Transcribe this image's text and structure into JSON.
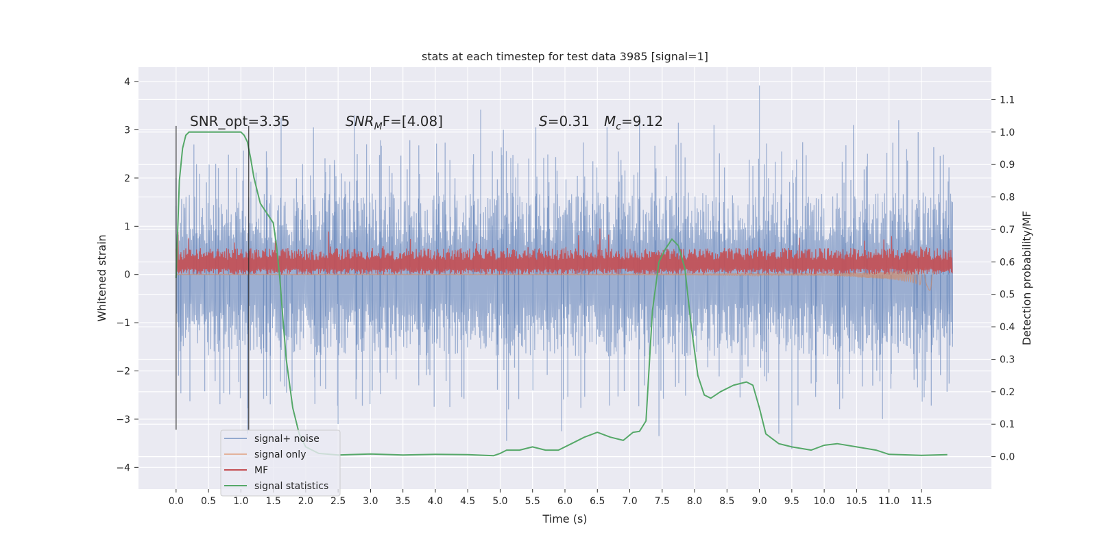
{
  "chart_data": {
    "type": "line",
    "title": "stats at each timestep for test data 3985 [signal=1]",
    "xlabel": "Time (s)",
    "ylabel_left": "Whitened strain",
    "ylabel_right": "Detection probability/MF",
    "xlim": [
      -0.58,
      12.58
    ],
    "ylim_left": [
      -4.45,
      4.3
    ],
    "ylim_right": [
      -0.1,
      1.2
    ],
    "x_ticks": [
      0.0,
      0.5,
      1.0,
      1.5,
      2.0,
      2.5,
      3.0,
      3.5,
      4.0,
      4.5,
      5.0,
      5.5,
      6.0,
      6.5,
      7.0,
      7.5,
      8.0,
      8.5,
      9.0,
      9.5,
      10.0,
      10.5,
      11.0,
      11.5
    ],
    "x_tick_labels": [
      "0.0",
      "0.5",
      "1.0",
      "1.5",
      "2.0",
      "2.5",
      "3.0",
      "3.5",
      "4.0",
      "4.5",
      "5.0",
      "5.5",
      "6.0",
      "6.5",
      "7.0",
      "7.5",
      "8.0",
      "8.5",
      "9.0",
      "9.5",
      "10.0",
      "10.5",
      "11.0",
      "11.5"
    ],
    "y_left_ticks": [
      -4,
      -3,
      -2,
      -1,
      0,
      1,
      2,
      3,
      4
    ],
    "y_left_tick_labels": [
      "−4",
      "−3",
      "−2",
      "−1",
      "0",
      "1",
      "2",
      "3",
      "4"
    ],
    "y_right_ticks": [
      0.0,
      0.1,
      0.2,
      0.3,
      0.4,
      0.5,
      0.6,
      0.7,
      0.8,
      0.9,
      1.0,
      1.1
    ],
    "y_right_tick_labels": [
      "0.0",
      "0.1",
      "0.2",
      "0.3",
      "0.4",
      "0.5",
      "0.6",
      "0.7",
      "0.8",
      "0.9",
      "1.0",
      "1.1"
    ],
    "grid": true,
    "legend_position": "lower-left",
    "annotations": {
      "snr_opt": "SNR_opt=3.35",
      "snr_mf_base": "SNR",
      "snr_mf_sub": "M",
      "snr_mf_tail": "F=[4.08]",
      "s_label": "S",
      "s_value": "=0.31",
      "mc_label": "M",
      "mc_sub": "c",
      "mc_value": "=9.12"
    },
    "window_markers": [
      0.0,
      1.12
    ],
    "series": [
      {
        "name": "signal+ noise",
        "color": "#4c72b0",
        "axis": "left",
        "kind": "noise_band",
        "x_range": [
          0.0,
          11.98
        ],
        "typical_range": [
          -1.7,
          1.7
        ],
        "max": 3.92,
        "min": -3.6,
        "peaks": [
          [
            0.0,
            2.0
          ],
          [
            1.62,
            3.25
          ],
          [
            2.12,
            3.05
          ],
          [
            2.75,
            3.3
          ],
          [
            4.7,
            3.42
          ],
          [
            5.05,
            3.0
          ],
          [
            5.55,
            3.05
          ],
          [
            6.65,
            3.05
          ],
          [
            7.15,
            3.3
          ],
          [
            7.75,
            3.15
          ],
          [
            8.3,
            3.1
          ],
          [
            9.0,
            3.92
          ],
          [
            10.45,
            3.1
          ],
          [
            11.15,
            3.2
          ],
          [
            11.45,
            2.95
          ],
          [
            11.98,
            1.5
          ]
        ],
        "troughs": [
          [
            1.1,
            -3.3
          ],
          [
            2.5,
            -3.1
          ],
          [
            5.1,
            -3.45
          ],
          [
            5.95,
            -3.25
          ],
          [
            7.45,
            -3.35
          ],
          [
            9.3,
            -3.3
          ],
          [
            9.5,
            -3.62
          ],
          [
            10.9,
            -3.0
          ],
          [
            11.98,
            -1.5
          ]
        ]
      },
      {
        "name": "signal only",
        "color": "#dd8452",
        "axis": "left",
        "kind": "chirp",
        "x": [
          0.0,
          8.0,
          9.0,
          10.0,
          10.5,
          11.0,
          11.3,
          11.5,
          11.6,
          11.65,
          11.7
        ],
        "amplitude": [
          0.005,
          0.01,
          0.015,
          0.03,
          0.05,
          0.08,
          0.12,
          0.18,
          0.25,
          0.4,
          0.0
        ]
      },
      {
        "name": "MF",
        "color": "#c44e52",
        "axis": "left",
        "kind": "positive_noise",
        "x_range": [
          0.0,
          11.98
        ],
        "typical_range": [
          0.0,
          0.55
        ],
        "max": 1.0
      },
      {
        "name": "signal statistics",
        "color": "#55a868",
        "axis": "right",
        "kind": "line",
        "x": [
          0.0,
          0.05,
          0.1,
          0.15,
          0.2,
          0.3,
          0.5,
          0.7,
          0.9,
          1.0,
          1.05,
          1.1,
          1.15,
          1.2,
          1.3,
          1.4,
          1.5,
          1.55,
          1.6,
          1.65,
          1.7,
          1.8,
          1.9,
          2.0,
          2.2,
          2.5,
          3.0,
          3.5,
          4.0,
          4.5,
          4.9,
          5.0,
          5.1,
          5.3,
          5.5,
          5.7,
          5.9,
          6.1,
          6.3,
          6.5,
          6.7,
          6.9,
          7.05,
          7.15,
          7.25,
          7.35,
          7.45,
          7.55,
          7.65,
          7.75,
          7.85,
          7.95,
          8.05,
          8.15,
          8.25,
          8.4,
          8.6,
          8.8,
          8.9,
          9.0,
          9.1,
          9.3,
          9.5,
          9.8,
          10.0,
          10.2,
          10.5,
          10.8,
          11.0,
          11.5,
          11.9
        ],
        "y": [
          0.55,
          0.85,
          0.95,
          0.99,
          1.0,
          1.0,
          1.0,
          1.0,
          1.0,
          1.0,
          0.99,
          0.97,
          0.92,
          0.86,
          0.78,
          0.75,
          0.72,
          0.65,
          0.55,
          0.42,
          0.3,
          0.15,
          0.07,
          0.03,
          0.01,
          0.005,
          0.008,
          0.005,
          0.007,
          0.006,
          0.003,
          0.01,
          0.02,
          0.02,
          0.03,
          0.02,
          0.02,
          0.04,
          0.06,
          0.075,
          0.06,
          0.05,
          0.075,
          0.078,
          0.11,
          0.45,
          0.6,
          0.64,
          0.67,
          0.65,
          0.58,
          0.4,
          0.25,
          0.19,
          0.18,
          0.2,
          0.22,
          0.23,
          0.22,
          0.15,
          0.07,
          0.04,
          0.03,
          0.02,
          0.035,
          0.04,
          0.03,
          0.02,
          0.007,
          0.004,
          0.006
        ]
      }
    ]
  }
}
